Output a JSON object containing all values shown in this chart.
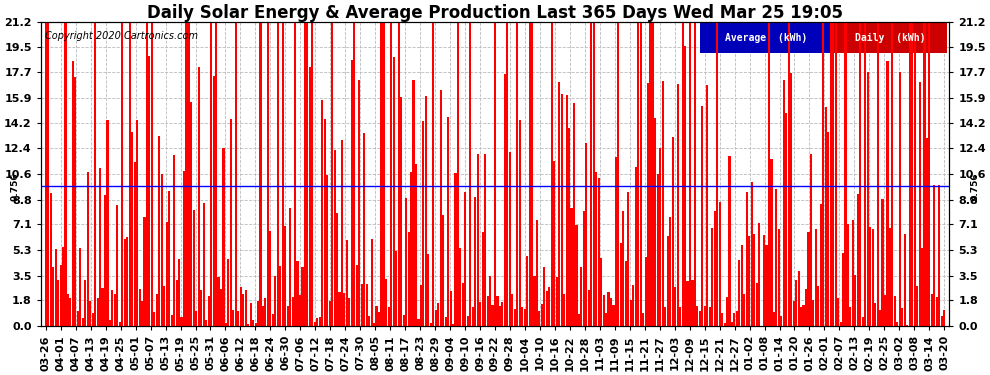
{
  "title": "Daily Solar Energy & Average Production Last 365 Days Wed Mar 25 19:05",
  "copyright": "Copyright 2020 Cartronics.com",
  "yticks": [
    0.0,
    1.8,
    3.5,
    5.3,
    7.1,
    8.8,
    10.6,
    12.4,
    14.2,
    15.9,
    17.7,
    19.5,
    21.2
  ],
  "ymax": 21.2,
  "ymin": 0.0,
  "average_line": 9.756,
  "bar_color": "#FF0000",
  "average_line_color": "#0000FF",
  "background_color": "#FFFFFF",
  "grid_color": "#BBBBBB",
  "xtick_labels": [
    "03-26",
    "04-01",
    "04-07",
    "04-13",
    "04-19",
    "04-25",
    "05-01",
    "05-07",
    "05-13",
    "05-19",
    "05-25",
    "05-31",
    "06-06",
    "06-12",
    "06-18",
    "06-24",
    "06-30",
    "07-06",
    "07-12",
    "07-18",
    "07-24",
    "07-30",
    "08-05",
    "08-11",
    "08-17",
    "08-23",
    "08-29",
    "09-04",
    "09-10",
    "09-16",
    "09-22",
    "09-28",
    "10-04",
    "10-10",
    "10-16",
    "10-22",
    "10-28",
    "11-03",
    "11-09",
    "11-15",
    "11-21",
    "11-27",
    "12-03",
    "12-09",
    "12-15",
    "12-21",
    "12-27",
    "01-02",
    "01-08",
    "01-14",
    "01-20",
    "01-26",
    "02-01",
    "02-07",
    "02-13",
    "02-19",
    "02-25",
    "03-02",
    "03-08",
    "03-14",
    "03-20"
  ],
  "legend_average_color": "#0000BB",
  "legend_daily_color": "#CC0000",
  "title_fontsize": 12,
  "tick_fontsize": 8,
  "average_label": "9.756"
}
